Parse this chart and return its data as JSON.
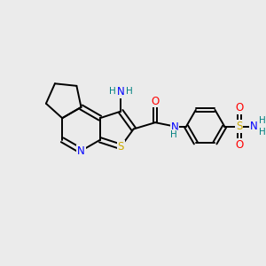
{
  "background_color": "#ebebeb",
  "bond_color": "#000000",
  "atom_colors": {
    "N": "#0000ff",
    "S": "#ccaa00",
    "O": "#ff0000",
    "C": "#000000",
    "H": "#008080"
  }
}
